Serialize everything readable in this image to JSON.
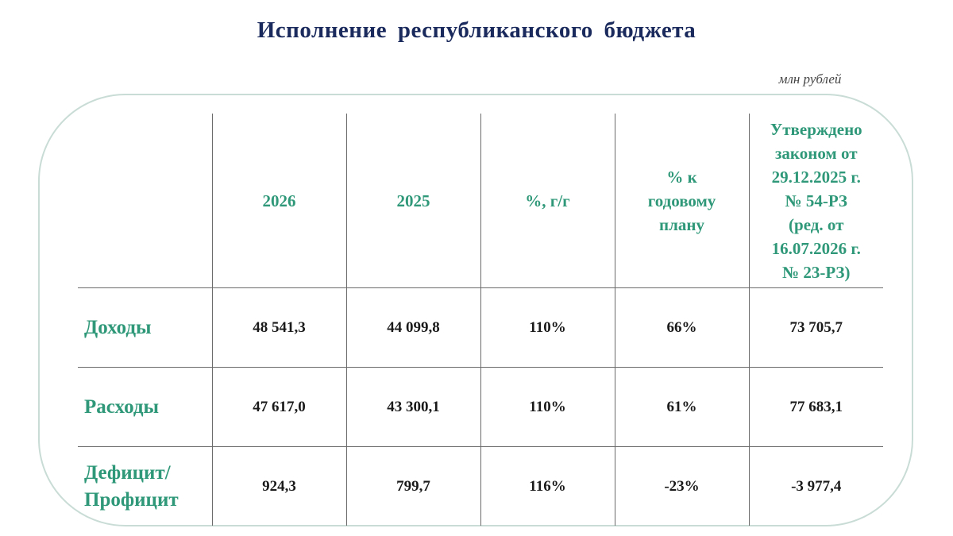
{
  "header": {
    "title": "Исполнение республиканского бюджета",
    "unit": "млн рублей"
  },
  "table": {
    "columns": [
      "2026",
      "2025",
      "%, г/г",
      "% к\nгодовому\nплану",
      "Утверждено\nзаконом от\n29.12.2025 г.\n№ 54-РЗ\n(ред. от\n16.07.2026 г.\n№ 23-РЗ)"
    ],
    "rows": [
      [
        "Доходы",
        "48 541,3",
        "44 099,8",
        "110%",
        "66%",
        "73 705,7"
      ],
      [
        "Расходы",
        "47 617,0",
        "43 300,1",
        "110%",
        "61%",
        "77 683,1"
      ],
      [
        "Дефицит/\nПрофицит",
        "924,3",
        "799,7",
        "116%",
        "-23%",
        "-3 977,4"
      ]
    ]
  }
}
